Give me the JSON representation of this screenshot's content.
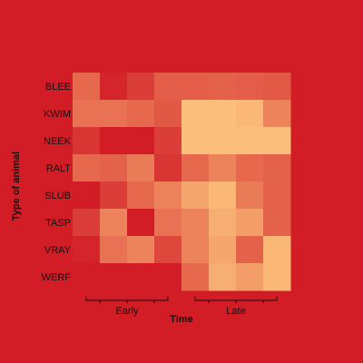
{
  "chart_data": {
    "type": "heatmap",
    "title": "",
    "xlabel": "Time",
    "ylabel": "Type of animal",
    "rows": [
      "BLEE",
      "KWIM",
      "NEEK",
      "RALT",
      "SLUB",
      "TASP",
      "VRAY",
      "WERF"
    ],
    "column_groups": [
      {
        "label": "Early",
        "columns": 4
      },
      {
        "label": "Late",
        "columns": 4
      }
    ],
    "values": [
      [
        0.55,
        0.95,
        0.8,
        0.62,
        0.62,
        0.6,
        0.62,
        0.64
      ],
      [
        0.5,
        0.5,
        0.55,
        0.65,
        0.05,
        0.05,
        0.1,
        0.4
      ],
      [
        0.85,
        1.0,
        1.0,
        0.8,
        0.05,
        0.05,
        0.05,
        0.05
      ],
      [
        0.55,
        0.6,
        0.45,
        0.85,
        0.55,
        0.4,
        0.55,
        0.6
      ],
      [
        1.0,
        0.8,
        0.55,
        0.4,
        0.2,
        0.1,
        0.45,
        0.6
      ],
      [
        0.8,
        0.4,
        1.0,
        0.5,
        0.4,
        0.15,
        0.25,
        0.6
      ],
      [
        0.95,
        0.5,
        0.4,
        0.75,
        0.4,
        0.2,
        0.6,
        0.1
      ],
      [
        1.0,
        1.0,
        1.0,
        1.0,
        0.55,
        0.15,
        0.25,
        0.1
      ]
    ],
    "color_scale": {
      "low": "#fec87f",
      "high": "#d21c26"
    },
    "legend": "none"
  },
  "background": "#d21c26"
}
